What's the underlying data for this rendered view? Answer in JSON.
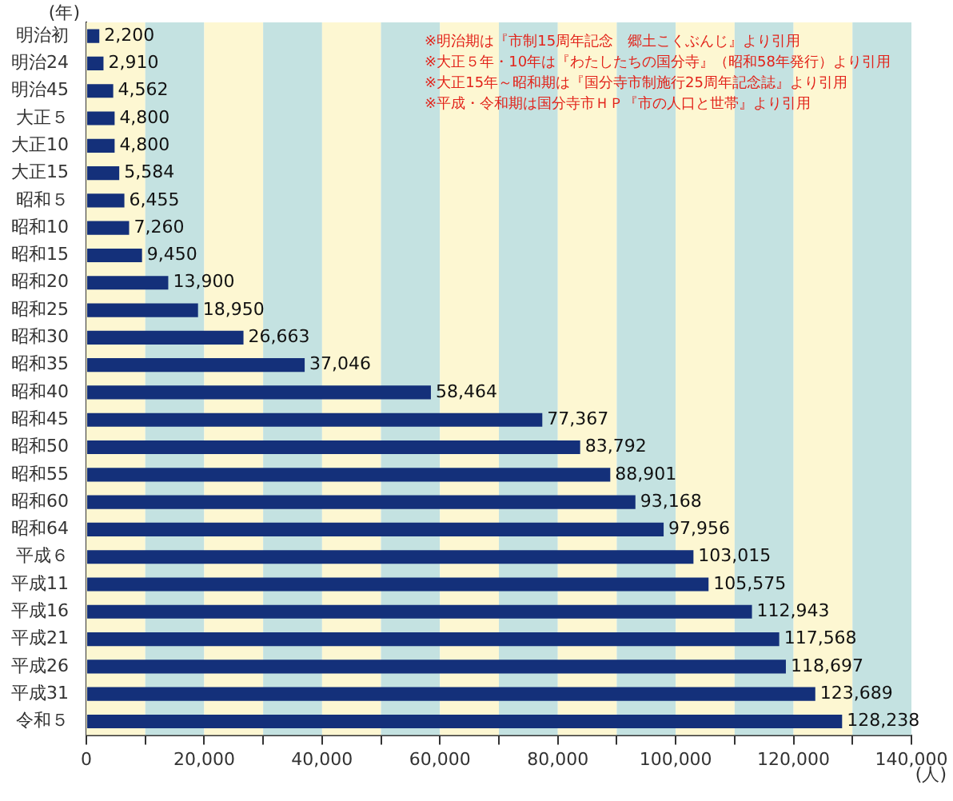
{
  "chart_data": {
    "type": "bar",
    "orientation": "horizontal",
    "ylabel": "(年)",
    "xlabel": "(人)",
    "categories": [
      "明治初",
      "明治24",
      "明治45",
      "大正５",
      "大正10",
      "大正15",
      "昭和５",
      "昭和10",
      "昭和15",
      "昭和20",
      "昭和25",
      "昭和30",
      "昭和35",
      "昭和40",
      "昭和45",
      "昭和50",
      "昭和55",
      "昭和60",
      "昭和64",
      "平成６",
      "平成11",
      "平成16",
      "平成21",
      "平成26",
      "平成31",
      "令和５"
    ],
    "values": [
      2200,
      2910,
      4562,
      4800,
      4800,
      5584,
      6455,
      7260,
      9450,
      13900,
      18950,
      26663,
      37046,
      58464,
      77367,
      83792,
      88901,
      93168,
      97956,
      103015,
      105575,
      112943,
      117568,
      118697,
      123689,
      128238
    ],
    "value_labels": [
      "2,200",
      "2,910",
      "4,562",
      "4,800",
      "4,800",
      "5,584",
      "6,455",
      "7,260",
      "9,450",
      "13,900",
      "18,950",
      "26,663",
      "37,046",
      "58,464",
      "77,367",
      "83,792",
      "88,901",
      "93,168",
      "97,956",
      "103,015",
      "105,575",
      "112,943",
      "117,568",
      "118,697",
      "123,689",
      "128,238"
    ],
    "color": "#14307a",
    "xlim": [
      0,
      140000
    ],
    "xticks": [
      0,
      {
        "value": 10000,
        "label": null
      },
      {
        "value": 20000,
        "label": "20,000"
      },
      {
        "value": 30000,
        "label": null
      },
      {
        "value": 40000,
        "label": "40,000"
      },
      {
        "value": 50000,
        "label": null
      },
      {
        "value": 60000,
        "label": "60,000"
      },
      {
        "value": 70000,
        "label": null
      },
      {
        "value": 80000,
        "label": "80,000"
      },
      {
        "value": 90000,
        "label": null
      },
      {
        "value": 100000,
        "label": "100,000"
      },
      {
        "value": 110000,
        "label": null
      },
      {
        "value": 120000,
        "label": "120,000"
      },
      {
        "value": 130000,
        "label": null
      },
      {
        "value": 140000,
        "label": "140,000"
      }
    ],
    "bands": [
      {
        "axis": "x",
        "from": 0,
        "to": 10000,
        "color": "#fdf7d2"
      },
      {
        "axis": "x",
        "from": 10000,
        "to": 20000,
        "color": "#c4e2e1"
      },
      {
        "axis": "x",
        "from": 20000,
        "to": 30000,
        "color": "#fdf7d2"
      },
      {
        "axis": "x",
        "from": 30000,
        "to": 40000,
        "color": "#c4e2e1"
      },
      {
        "axis": "x",
        "from": 40000,
        "to": 50000,
        "color": "#fdf7d2"
      },
      {
        "axis": "x",
        "from": 50000,
        "to": 60000,
        "color": "#c4e2e1"
      },
      {
        "axis": "x",
        "from": 60000,
        "to": 70000,
        "color": "#fdf7d2"
      },
      {
        "axis": "x",
        "from": 70000,
        "to": 80000,
        "color": "#c4e2e1"
      },
      {
        "axis": "x",
        "from": 80000,
        "to": 90000,
        "color": "#fdf7d2"
      },
      {
        "axis": "x",
        "from": 90000,
        "to": 100000,
        "color": "#c4e2e1"
      },
      {
        "axis": "x",
        "from": 100000,
        "to": 110000,
        "color": "#fdf7d2"
      },
      {
        "axis": "x",
        "from": 110000,
        "to": 120000,
        "color": "#c4e2e1"
      },
      {
        "axis": "x",
        "from": 120000,
        "to": 130000,
        "color": "#fdf7d2"
      },
      {
        "axis": "x",
        "from": 130000,
        "to": 140000,
        "color": "#c4e2e1"
      }
    ],
    "annotations": [
      "※明治期は『市制15周年記念　郷土こくぶんじ』より引用",
      "※大正５年・10年は『わたしたちの国分寺』（昭和58年発行）より引用",
      "※大正15年～昭和期は『国分寺市制施行25周年記念誌』より引用",
      "※平成・令和期は国分寺市ＨＰ『市の人口と世帯』より引用"
    ]
  }
}
